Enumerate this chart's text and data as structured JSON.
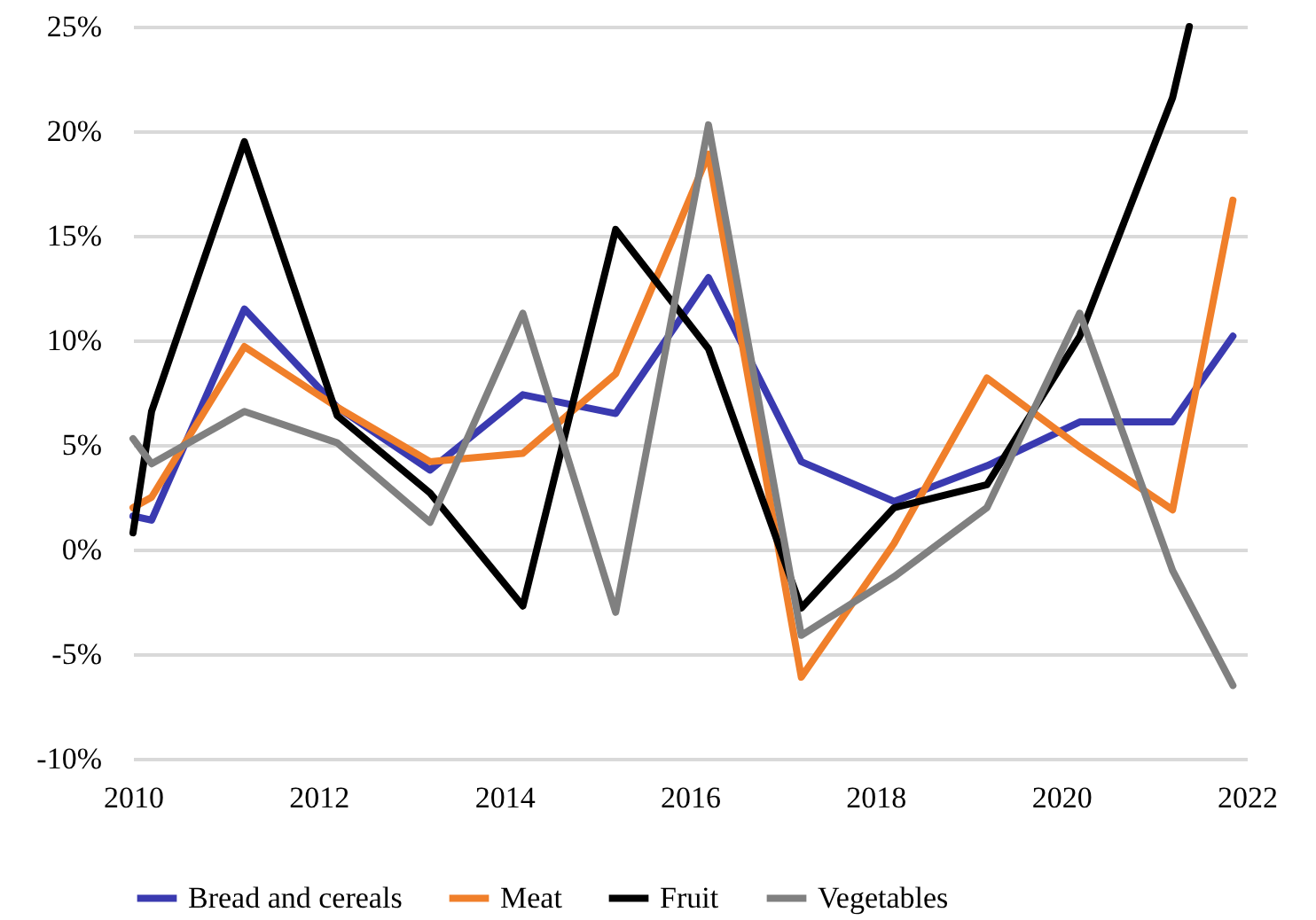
{
  "chart_data": {
    "type": "line",
    "xlim": [
      2010,
      2022
    ],
    "xticks": [
      2010,
      2012,
      2014,
      2016,
      2018,
      2020,
      2022
    ],
    "ylim": [
      -10,
      25
    ],
    "yticks": [
      {
        "value": -10,
        "label": "-10%"
      },
      {
        "value": -5,
        "label": "-5%"
      },
      {
        "value": 0,
        "label": "0%"
      },
      {
        "value": 5,
        "label": "5%"
      },
      {
        "value": 10,
        "label": "10%"
      },
      {
        "value": 15,
        "label": "15%"
      },
      {
        "value": 20,
        "label": "20%"
      },
      {
        "value": 25,
        "label": "25%"
      }
    ],
    "grid": "y",
    "legend": "bottom",
    "marker": "none",
    "line_style": "solid",
    "series": [
      {
        "name": "Bread and cereals",
        "color": "#3a3ab0",
        "x": [
          2010,
          2010.2,
          2011.2,
          2012.2,
          2013.2,
          2014.2,
          2015.2,
          2016.2,
          2017.2,
          2018.2,
          2019.2,
          2020.2,
          2021.2,
          2021.85
        ],
        "values": [
          1.6,
          1.4,
          11.5,
          6.8,
          3.8,
          7.4,
          6.5,
          13.0,
          4.2,
          2.3,
          4.0,
          6.1,
          6.1,
          10.2
        ]
      },
      {
        "name": "Meat",
        "color": "#f07f2a",
        "x": [
          2010,
          2010.2,
          2011.2,
          2012.2,
          2013.2,
          2014.2,
          2015.2,
          2016.2,
          2017.2,
          2018.2,
          2019.2,
          2020.2,
          2021.2,
          2021.85
        ],
        "values": [
          2.0,
          2.5,
          9.7,
          6.8,
          4.2,
          4.6,
          8.4,
          18.9,
          -6.1,
          0.3,
          8.2,
          4.9,
          1.9,
          16.7
        ]
      },
      {
        "name": "Fruit",
        "color": "#000000",
        "x": [
          2010,
          2010.2,
          2011.2,
          2012.2,
          2013.2,
          2014.2,
          2015.2,
          2016.2,
          2017.2,
          2018.2,
          2019.2,
          2020.2,
          2021.2,
          2021.38
        ],
        "values": [
          0.8,
          6.6,
          19.5,
          6.4,
          2.7,
          -2.7,
          15.3,
          9.6,
          -2.8,
          2.0,
          3.1,
          10.2,
          21.6,
          25
        ]
      },
      {
        "name": "Vegetables",
        "color": "#808080",
        "x": [
          2010,
          2010.2,
          2011.2,
          2012.2,
          2013.2,
          2014.2,
          2015.2,
          2016.2,
          2017.2,
          2018.2,
          2019.2,
          2020.2,
          2021.2,
          2021.85
        ],
        "values": [
          5.3,
          4.1,
          6.6,
          5.1,
          1.3,
          11.3,
          -3.0,
          20.3,
          -4.1,
          -1.3,
          2.0,
          11.3,
          -1.0,
          -6.5
        ]
      }
    ]
  }
}
